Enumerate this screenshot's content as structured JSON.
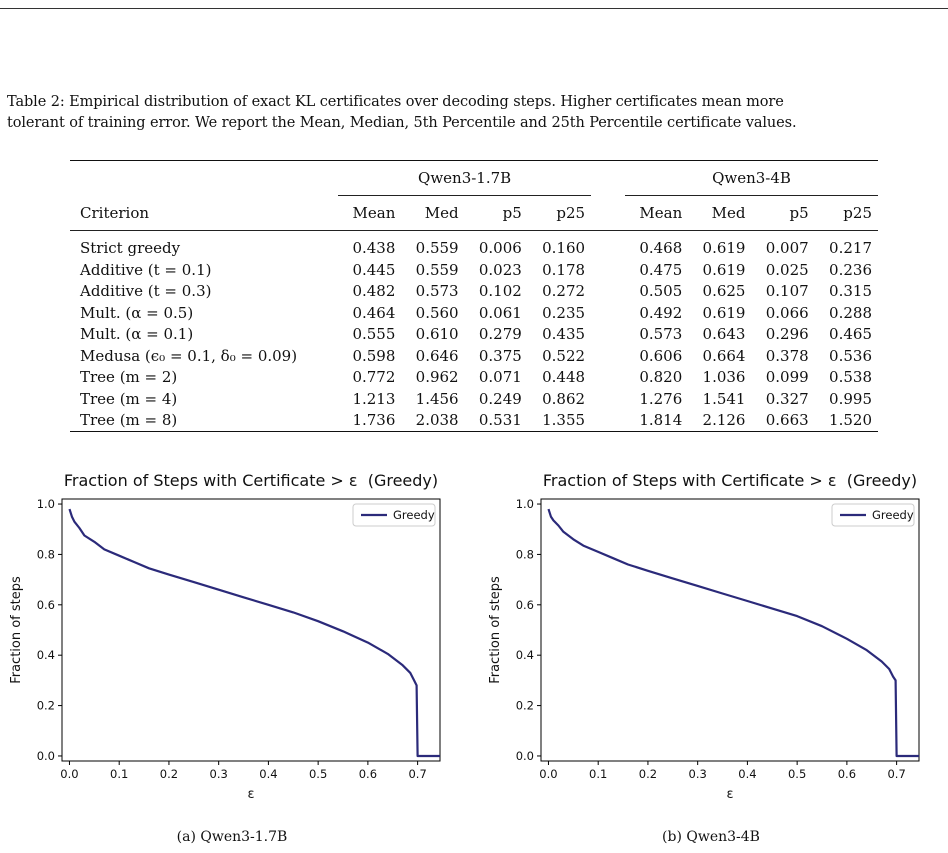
{
  "caption": {
    "line1": "Table 2: Empirical distribution of exact KL certificates over decoding steps. Higher certificates mean more",
    "line2": "tolerant of training error. We report the Mean, Median, 5th Percentile and 25th Percentile certificate values."
  },
  "table": {
    "groups": [
      "Qwen3-1.7B",
      "Qwen3-4B"
    ],
    "criterion_header": "Criterion",
    "col_headers": [
      "Mean",
      "Med",
      "p5",
      "p25"
    ],
    "rows": [
      {
        "label": "Strict greedy",
        "values": [
          "0.438",
          "0.559",
          "0.006",
          "0.160",
          "0.468",
          "0.619",
          "0.007",
          "0.217"
        ]
      },
      {
        "label": "Additive (t = 0.1)",
        "values": [
          "0.445",
          "0.559",
          "0.023",
          "0.178",
          "0.475",
          "0.619",
          "0.025",
          "0.236"
        ]
      },
      {
        "label": "Additive (t = 0.3)",
        "values": [
          "0.482",
          "0.573",
          "0.102",
          "0.272",
          "0.505",
          "0.625",
          "0.107",
          "0.315"
        ]
      },
      {
        "label": "Mult. (α = 0.5)",
        "values": [
          "0.464",
          "0.560",
          "0.061",
          "0.235",
          "0.492",
          "0.619",
          "0.066",
          "0.288"
        ]
      },
      {
        "label": "Mult. (α = 0.1)",
        "values": [
          "0.555",
          "0.610",
          "0.279",
          "0.435",
          "0.573",
          "0.643",
          "0.296",
          "0.465"
        ]
      },
      {
        "label": "Medusa (ϵ₀ = 0.1, δ₀ = 0.09)",
        "values": [
          "0.598",
          "0.646",
          "0.375",
          "0.522",
          "0.606",
          "0.664",
          "0.378",
          "0.536"
        ]
      },
      {
        "label": "Tree (m = 2)",
        "values": [
          "0.772",
          "0.962",
          "0.071",
          "0.448",
          "0.820",
          "1.036",
          "0.099",
          "0.538"
        ]
      },
      {
        "label": "Tree (m = 4)",
        "values": [
          "1.213",
          "1.456",
          "0.249",
          "0.862",
          "1.276",
          "1.541",
          "0.327",
          "0.995"
        ]
      },
      {
        "label": "Tree (m = 8)",
        "values": [
          "1.736",
          "2.038",
          "0.531",
          "1.355",
          "1.814",
          "2.126",
          "0.663",
          "1.520"
        ]
      }
    ]
  },
  "chart_data": [
    {
      "type": "line",
      "title": "Fraction of Steps with Certificate > ε  (Greedy)",
      "xlabel": "ε",
      "ylabel": "Fraction of steps",
      "xlim": [
        -0.015,
        0.745
      ],
      "ylim": [
        -0.02,
        1.02
      ],
      "xticks": [
        0.0,
        0.1,
        0.2,
        0.3,
        0.4,
        0.5,
        0.6,
        0.7
      ],
      "xtick_labels": [
        "0.0",
        "0.1",
        "0.2",
        "0.3",
        "0.4",
        "0.5",
        "0.6",
        "0.7"
      ],
      "yticks": [
        0.0,
        0.2,
        0.4,
        0.6,
        0.8,
        1.0
      ],
      "ytick_labels": [
        "0.0",
        "0.2",
        "0.4",
        "0.6",
        "0.8",
        "1.0"
      ],
      "legend": "upper right",
      "color": "#2b2a7a",
      "series": [
        {
          "name": "Greedy",
          "x": [
            0.0,
            0.005,
            0.01,
            0.02,
            0.03,
            0.05,
            0.07,
            0.1,
            0.13,
            0.16,
            0.2,
            0.25,
            0.3,
            0.35,
            0.4,
            0.45,
            0.5,
            0.55,
            0.6,
            0.64,
            0.67,
            0.685,
            0.693,
            0.698,
            0.7,
            0.71,
            0.745
          ],
          "y": [
            0.98,
            0.95,
            0.93,
            0.905,
            0.875,
            0.85,
            0.82,
            0.795,
            0.77,
            0.745,
            0.72,
            0.69,
            0.66,
            0.63,
            0.6,
            0.57,
            0.535,
            0.495,
            0.45,
            0.405,
            0.36,
            0.33,
            0.3,
            0.28,
            0.0,
            0.0,
            0.0
          ]
        }
      ]
    },
    {
      "type": "line",
      "title": "Fraction of Steps with Certificate > ε  (Greedy)",
      "xlabel": "ε",
      "ylabel": "Fraction of steps",
      "xlim": [
        -0.015,
        0.745
      ],
      "ylim": [
        -0.02,
        1.02
      ],
      "xticks": [
        0.0,
        0.1,
        0.2,
        0.3,
        0.4,
        0.5,
        0.6,
        0.7
      ],
      "xtick_labels": [
        "0.0",
        "0.1",
        "0.2",
        "0.3",
        "0.4",
        "0.5",
        "0.6",
        "0.7"
      ],
      "yticks": [
        0.0,
        0.2,
        0.4,
        0.6,
        0.8,
        1.0
      ],
      "ytick_labels": [
        "0.0",
        "0.2",
        "0.4",
        "0.6",
        "0.8",
        "1.0"
      ],
      "legend": "upper right",
      "color": "#2b2a7a",
      "series": [
        {
          "name": "Greedy",
          "x": [
            0.0,
            0.005,
            0.01,
            0.02,
            0.03,
            0.05,
            0.07,
            0.1,
            0.13,
            0.16,
            0.2,
            0.25,
            0.3,
            0.35,
            0.4,
            0.45,
            0.5,
            0.55,
            0.6,
            0.64,
            0.67,
            0.685,
            0.693,
            0.698,
            0.7,
            0.71,
            0.745
          ],
          "y": [
            0.98,
            0.95,
            0.935,
            0.915,
            0.89,
            0.86,
            0.835,
            0.81,
            0.785,
            0.76,
            0.735,
            0.705,
            0.675,
            0.645,
            0.615,
            0.585,
            0.555,
            0.515,
            0.465,
            0.42,
            0.375,
            0.345,
            0.315,
            0.3,
            0.0,
            0.0,
            0.0
          ]
        }
      ]
    }
  ],
  "subcaptions": [
    "(a) Qwen3-1.7B",
    "(b) Qwen3-4B"
  ]
}
